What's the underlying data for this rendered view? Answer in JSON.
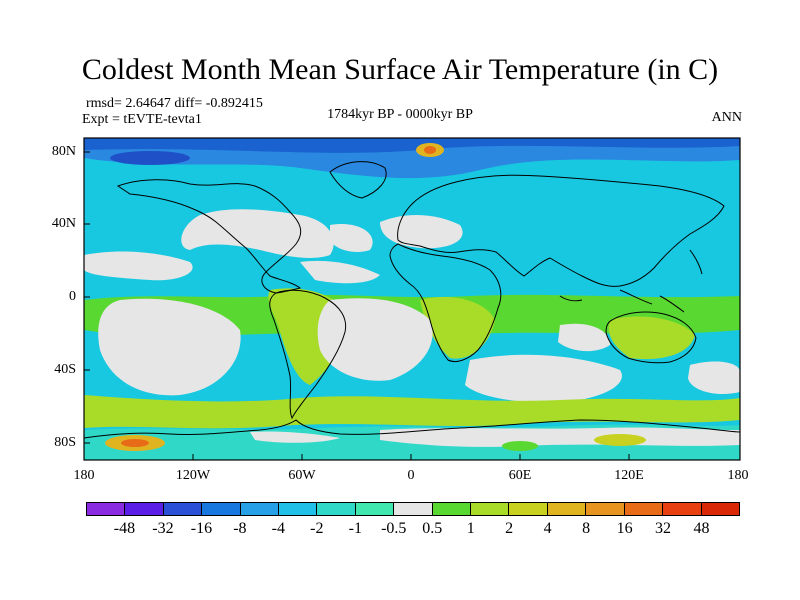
{
  "title": "Coldest Month Mean Surface Air Temperature (in C)",
  "stats_line": "rmsd= 2.64647  diff= -0.892415",
  "expt_line": "Expt = tEVTE-tevta1",
  "period": "1784kyr BP - 0000kyr BP",
  "season": "ANN",
  "lat_labels": [
    "80N",
    "40N",
    "0",
    "40S",
    "80S"
  ],
  "lon_labels": [
    "180",
    "120W",
    "60W",
    "0",
    "60E",
    "120E",
    "180"
  ],
  "colorbar": {
    "labels": [
      "-48",
      "-32",
      "-16",
      "-8",
      "-4",
      "-2",
      "-1",
      "-0.5",
      "0.5",
      "1",
      "2",
      "4",
      "8",
      "16",
      "32",
      "48"
    ],
    "colors": [
      "#8a2be2",
      "#5a1ee6",
      "#2a50d8",
      "#1878e0",
      "#28a0e8",
      "#20c0e8",
      "#30d8c8",
      "#40e8b0",
      "#e6e6e6",
      "#5ad832",
      "#a8dc28",
      "#c8d020",
      "#e0b420",
      "#e89420",
      "#e86c18",
      "#e84010",
      "#d82808"
    ]
  },
  "colors": {
    "ocean_base": "#18c8e0",
    "land_warm": "#a8dc28",
    "near_zero": "#e6e6e6",
    "cold": "#1878e0",
    "coast": "#000000"
  }
}
